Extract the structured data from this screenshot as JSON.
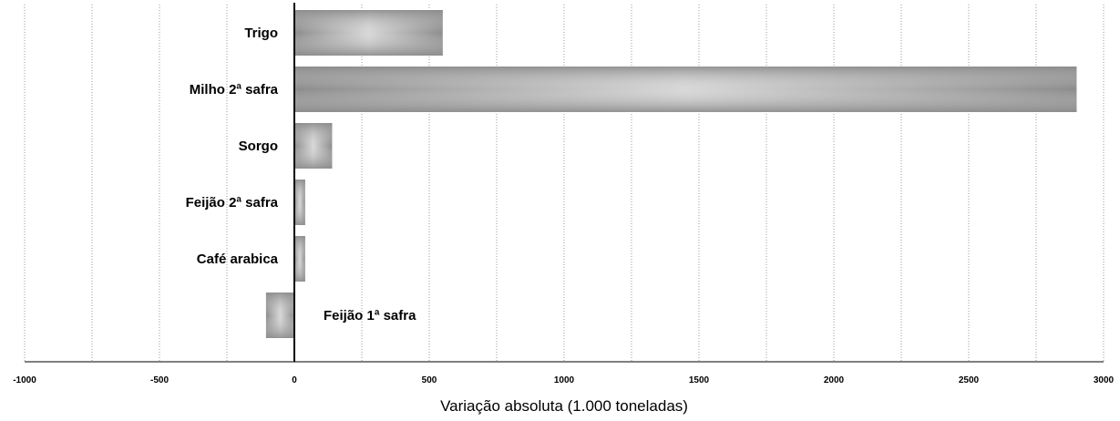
{
  "chart_data": {
    "type": "bar",
    "orientation": "horizontal",
    "categories": [
      "Trigo",
      "Milho 2ª safra",
      "Sorgo",
      "Feijão 2ª safra",
      "Café arabica",
      "Feijão 1ª safra"
    ],
    "values": [
      550,
      2900,
      140,
      40,
      40,
      -105
    ],
    "xlabel": "Variação absoluta (1.000 toneladas)",
    "ylabel": "",
    "title": "",
    "xlim": [
      -1000,
      3000
    ],
    "xticks": [
      -1000,
      -500,
      0,
      500,
      1000,
      1500,
      2000,
      2500,
      3000
    ],
    "tick_labels": [
      "-1000",
      "-500",
      "0",
      "500",
      "1000",
      "1500",
      "2000",
      "2500",
      "3000"
    ],
    "grid": "vertical dotted",
    "legend": "none",
    "bar_color": "#8c8c8c",
    "bar_highlight_color": "#d8d8d8"
  }
}
